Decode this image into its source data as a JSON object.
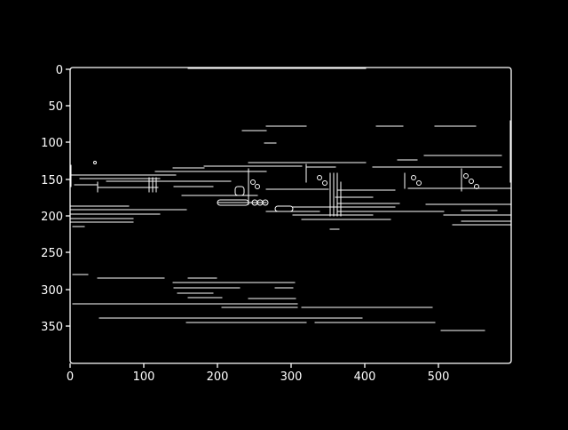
{
  "figure": {
    "kind": "edge-detection image plot",
    "background": "#000000",
    "foreground": "#ffffff",
    "x_axis": {
      "range": [
        0,
        600
      ],
      "ticks": [
        0,
        100,
        200,
        300,
        400,
        500
      ]
    },
    "y_axis": {
      "range": [
        0,
        400
      ],
      "inverted": true,
      "ticks": [
        0,
        50,
        100,
        150,
        200,
        250,
        300,
        350
      ]
    }
  }
}
